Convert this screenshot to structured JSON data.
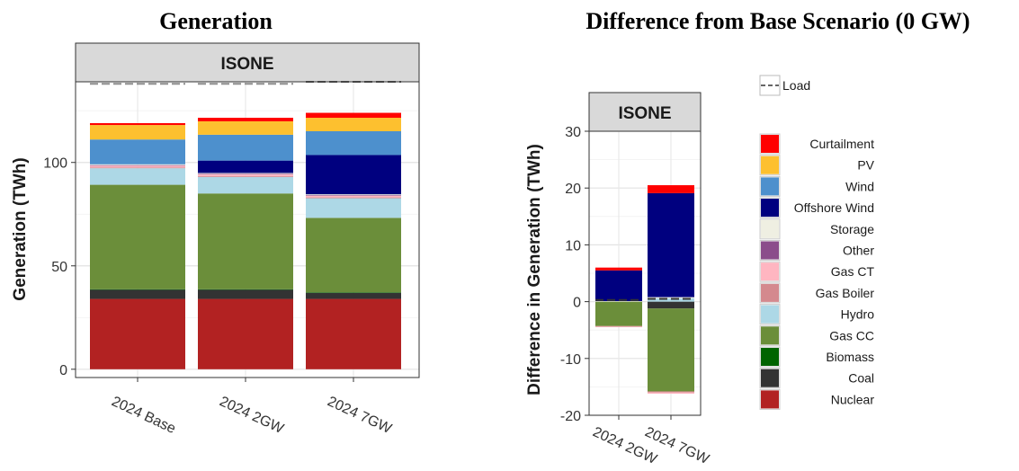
{
  "chart_data": [
    {
      "type": "bar",
      "stacked": true,
      "title": "Generation",
      "panel": "ISONE",
      "xlabel": "",
      "ylabel": "Generation (TWh)",
      "ylim": [
        -4,
        139
      ],
      "yticks": [
        0,
        50,
        100
      ],
      "grid": true,
      "categories": [
        "2024 Base",
        "2024 2GW",
        "2024 7GW"
      ],
      "load": [
        138,
        138,
        139
      ],
      "series": [
        {
          "name": "Nuclear",
          "color": "#b22222",
          "values": [
            34,
            34,
            34
          ]
        },
        {
          "name": "Coal",
          "color": "#333333",
          "values": [
            4.5,
            4.5,
            3
          ]
        },
        {
          "name": "Biomass",
          "color": "#006400",
          "values": [
            0.2,
            0.2,
            0.2
          ]
        },
        {
          "name": "Gas CC",
          "color": "#6b8e3a",
          "values": [
            50.5,
            46.3,
            36
          ]
        },
        {
          "name": "Hydro",
          "color": "#add8e6",
          "values": [
            8,
            8,
            9.5
          ]
        },
        {
          "name": "Gas Boiler",
          "color": "#d4898e",
          "values": [
            0.4,
            0.4,
            0.4
          ]
        },
        {
          "name": "Gas CT",
          "color": "#ffb6c1",
          "values": [
            0.8,
            0.8,
            0.8
          ]
        },
        {
          "name": "Other",
          "color": "#8b4d8b",
          "values": [
            0.3,
            0.3,
            0.3
          ]
        },
        {
          "name": "Storage",
          "color": "#efefe2",
          "values": [
            0.4,
            0.4,
            0.4
          ]
        },
        {
          "name": "Offshore Wind",
          "color": "#00007f",
          "values": [
            0,
            6,
            19
          ]
        },
        {
          "name": "Wind",
          "color": "#4d90cd",
          "values": [
            12,
            12.5,
            11.5
          ]
        },
        {
          "name": "PV",
          "color": "#fdc02f",
          "values": [
            7,
            6.5,
            6.5
          ]
        },
        {
          "name": "Curtailment",
          "color": "#ff0000",
          "values": [
            0.9,
            1.7,
            2.4
          ]
        }
      ]
    },
    {
      "type": "bar",
      "stacked": true,
      "title": "Difference from Base Scenario (0 GW)",
      "panel": "ISONE",
      "xlabel": "",
      "ylabel": "Difference in Generation (TWh)",
      "ylim": [
        -20,
        30
      ],
      "yticks": [
        -20,
        -10,
        0,
        10,
        20,
        30
      ],
      "grid": true,
      "categories": [
        "2024 2GW",
        "2024 7GW"
      ],
      "load": [
        0.3,
        0.5
      ],
      "series": [
        {
          "name": "Nuclear",
          "color": "#b22222",
          "values": [
            0,
            0
          ]
        },
        {
          "name": "Coal",
          "color": "#333333",
          "values": [
            0,
            -1.2
          ]
        },
        {
          "name": "Gas CC",
          "color": "#6b8e3a",
          "values": [
            -4.3,
            -14.6
          ]
        },
        {
          "name": "Gas Boiler",
          "color": "#d4898e",
          "values": [
            -0.1,
            -0.2
          ]
        },
        {
          "name": "Gas CT",
          "color": "#ffb6c1",
          "values": [
            -0.1,
            -0.2
          ]
        },
        {
          "name": "Hydro",
          "color": "#add8e6",
          "values": [
            0,
            0.6
          ]
        },
        {
          "name": "Storage",
          "color": "#efefe2",
          "values": [
            0.1,
            0.2
          ]
        },
        {
          "name": "Offshore Wind",
          "color": "#00007f",
          "values": [
            5.4,
            18.3
          ]
        },
        {
          "name": "Curtailment",
          "color": "#ff0000",
          "values": [
            0.5,
            1.4
          ]
        }
      ]
    }
  ],
  "legend": {
    "load_label": "Load",
    "items": [
      {
        "name": "Curtailment",
        "color": "#ff0000"
      },
      {
        "name": "PV",
        "color": "#fdc02f"
      },
      {
        "name": "Wind",
        "color": "#4d90cd"
      },
      {
        "name": "Offshore Wind",
        "color": "#00007f"
      },
      {
        "name": "Storage",
        "color": "#efefe2"
      },
      {
        "name": "Other",
        "color": "#8b4d8b"
      },
      {
        "name": "Gas CT",
        "color": "#ffb6c1"
      },
      {
        "name": "Gas Boiler",
        "color": "#d4898e"
      },
      {
        "name": "Hydro",
        "color": "#add8e6"
      },
      {
        "name": "Gas CC",
        "color": "#6b8e3a"
      },
      {
        "name": "Biomass",
        "color": "#006400"
      },
      {
        "name": "Coal",
        "color": "#333333"
      },
      {
        "name": "Nuclear",
        "color": "#b22222"
      }
    ]
  }
}
